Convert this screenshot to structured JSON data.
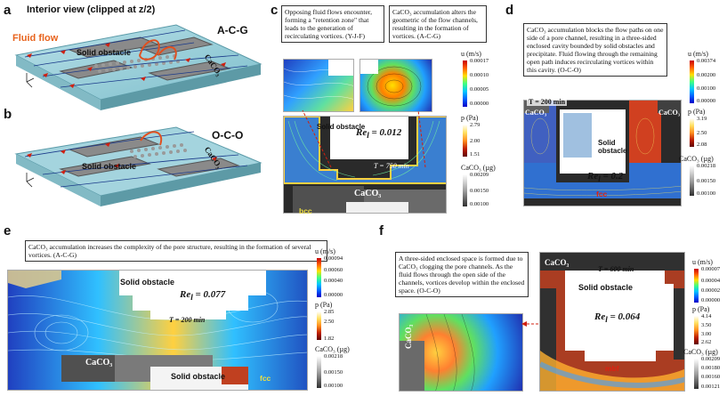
{
  "panel_a": {
    "label": "a",
    "title": "Interior view (clipped at z/2)",
    "fluid_flow": "Fluid flow",
    "obstacle": "Solid obstacle",
    "caco3": "CaCO₃",
    "tag": "A-C-G"
  },
  "panel_b": {
    "label": "b",
    "obstacle": "Solid obstacle",
    "caco3": "CaCO₃",
    "tag": "O-C-O"
  },
  "panel_c": {
    "label": "c",
    "caption_left": "Opposing fluid flows encounter, forming a \"retention zone\" that leads to the generation of recirculating vortices. (Y-J-F)",
    "caption_right": "CaCO₃ accumulation alters the geometric of the flow channels, resulting in the formation of vortices. (A-C-G)",
    "re_prefix": "Re",
    "re_sub": "l",
    "re_value": " = 0.012",
    "time": "T = 750 min",
    "obstacle": "Solid obstacle",
    "caco3": "CaCO₃",
    "tag": "bcc",
    "cbar_u": {
      "title": "u (m/s)",
      "ticks": [
        "0.00017",
        "0.00010",
        "0.00005",
        "0.00000"
      ]
    },
    "cbar_p": {
      "title": "p (Pa)",
      "ticks": [
        "2.79",
        "2.00",
        "1.51"
      ]
    },
    "cbar_c": {
      "title": "CaCO₃ (µg)",
      "ticks": [
        "0.00209",
        "0.00150",
        "0.00100"
      ]
    }
  },
  "panel_d": {
    "label": "d",
    "caption": "CaCO₃ accumulation blocks the flow paths on one side of a pore channel, resulting in a three-sided enclosed cavity bounded by solid obstacles and precipitate. Fluid flowing through the remaining open path induces recirculating vortices within this cavity. (O-C-O)",
    "time": "T = 200 min",
    "re_prefix": "Re",
    "re_sub": "l",
    "re_value": " = 0.2",
    "obstacle": "Solid obstacle",
    "caco3_left": "CaCO₃",
    "caco3_right": "CaCO₃",
    "tag": "fcc",
    "cbar_u": {
      "title": "u (m/s)",
      "ticks": [
        "0.00374",
        "0.00200",
        "0.00100",
        "0.00000"
      ]
    },
    "cbar_p": {
      "title": "p (Pa)",
      "ticks": [
        "3.19",
        "2.50",
        "2.08"
      ]
    },
    "cbar_c": {
      "title": "CaCO₃ (µg)",
      "ticks": [
        "0.00218",
        "0.00150",
        "0.00100"
      ]
    }
  },
  "panel_e": {
    "label": "e",
    "caption": "CaCO₃ accumulation increases the complexity of the pore structure, resulting in the formation of several vortices. (A-C-G)",
    "obstacle_top": "Solid obstacle",
    "obstacle_bottom": "Solid obstacle",
    "re_prefix": "Re",
    "re_sub": "l",
    "re_value": " = 0.077",
    "time": "T = 200 min",
    "caco3": "CaCO₃",
    "tag": "fcc",
    "cbar_u": {
      "title": "u (m/s)",
      "ticks": [
        "0.00094",
        "0.00060",
        "0.00040",
        "0.00000"
      ]
    },
    "cbar_p": {
      "title": "p (Pa)",
      "ticks": [
        "2.85",
        "2.50",
        "1.82"
      ]
    },
    "cbar_c": {
      "title": "CaCO₃ (µg)",
      "ticks": [
        "0.00218",
        "0.00150",
        "0.00100"
      ]
    }
  },
  "panel_f": {
    "label": "f",
    "caption": "A three-sided enclosed space is formed due to CaCO₃ clogging the pore channels. As the fluid flows through the open side of the channels, vortices develop within the enclosed space. (O-C-O)",
    "caco3_top": "CaCO₃",
    "caco3_side": "CaCO₃",
    "time": "T = 600 min",
    "obstacle": "Solid obstacle",
    "re_prefix": "Re",
    "re_sub": "l",
    "re_value": " = 0.064",
    "tag": "mbf",
    "cbar_u": {
      "title": "u (m/s)",
      "ticks": [
        "0.00007",
        "0.00004",
        "0.00002",
        "0.00000"
      ]
    },
    "cbar_p": {
      "title": "p (Pa)",
      "ticks": [
        "4.14",
        "3.50",
        "3.00",
        "2.62"
      ]
    },
    "cbar_c": {
      "title": "CaCO₃ (µg)",
      "ticks": [
        "0.00209",
        "0.00180",
        "0.00160",
        "0.00121"
      ]
    }
  },
  "colors": {
    "jet": "#0000c8,#0060ff,#00c8ff,#40ff80,#ffe000,#ff6000,#c80000",
    "pressure": "#ffffff,#ffe060,#ff9020,#c02000,#600000",
    "caco3": "#ffffff,#a0a0a0,#303030",
    "channel": "#9ccfd8",
    "obstacle": "#d8cf9c",
    "accent": "#e03010"
  }
}
